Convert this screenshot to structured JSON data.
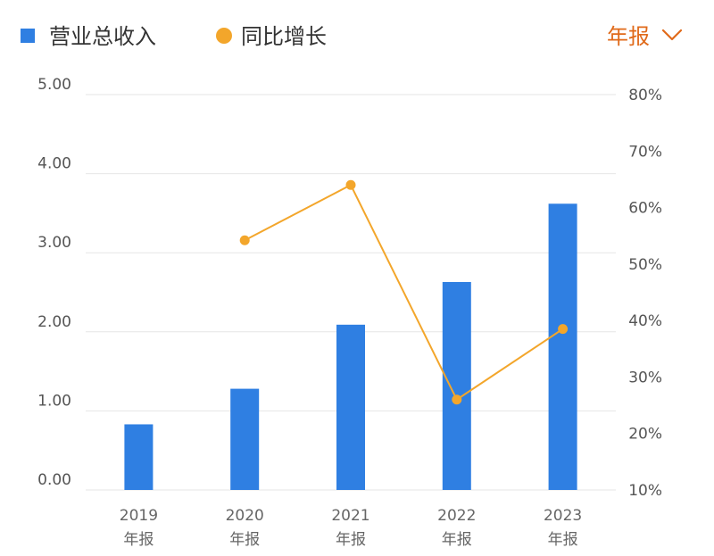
{
  "legend": {
    "bar_label": "营业总收入",
    "line_label": "同比增长"
  },
  "period_selector": {
    "label": "年报",
    "icon": "chevron-down-icon"
  },
  "colors": {
    "bar": "#2f7fe2",
    "line": "#f3a62b",
    "period": "#e06a1a"
  },
  "chart_data": {
    "type": "bar",
    "categories": [
      "2019\n年报",
      "2020\n年报",
      "2021\n年报",
      "2022\n年报",
      "2023\n年报"
    ],
    "series": [
      {
        "name": "营业总收入",
        "type": "bar",
        "axis": "left",
        "values": [
          0.83,
          1.28,
          2.09,
          2.63,
          3.62
        ]
      },
      {
        "name": "同比增长",
        "type": "line",
        "axis": "right",
        "values": [
          null,
          54.2,
          64.0,
          26.0,
          38.5
        ]
      }
    ],
    "y_left": {
      "ticks": [
        "0.00",
        "1.00",
        "2.00",
        "3.00",
        "4.00",
        "5.00"
      ],
      "range": [
        0,
        5
      ]
    },
    "y_right": {
      "ticks": [
        "10%",
        "20%",
        "30%",
        "40%",
        "50%",
        "60%",
        "70%",
        "80%"
      ],
      "range": [
        10,
        80
      ]
    },
    "grid": true,
    "legend_position": "top-left"
  }
}
